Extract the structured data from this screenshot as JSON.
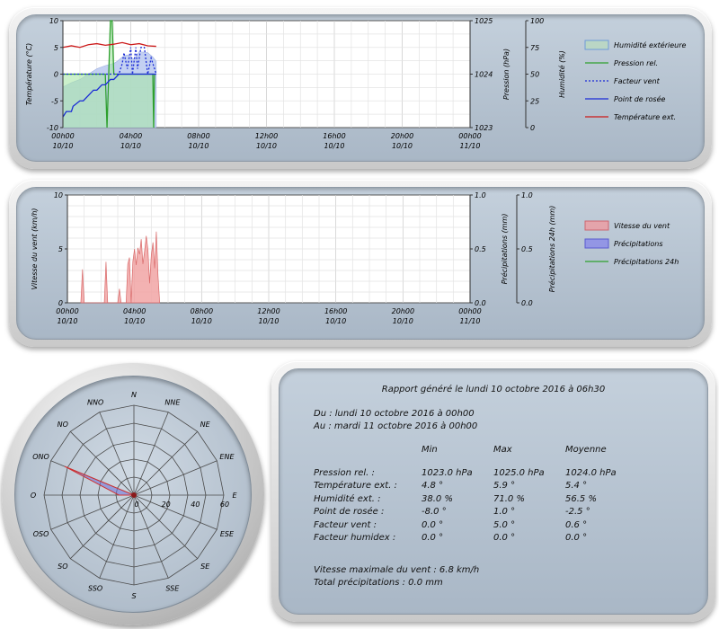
{
  "chart_data": [
    {
      "type": "line",
      "x_ticks": [
        {
          "time": "00h00",
          "date": "10/10"
        },
        {
          "time": "04h00",
          "date": "10/10"
        },
        {
          "time": "08h00",
          "date": "10/10"
        },
        {
          "time": "12h00",
          "date": "10/10"
        },
        {
          "time": "16h00",
          "date": "10/10"
        },
        {
          "time": "20h00",
          "date": "10/10"
        },
        {
          "time": "00h00",
          "date": "11/10"
        }
      ],
      "xlim_hours": [
        0,
        24
      ],
      "ylabel": "Température (°C)",
      "ylim": [
        -10,
        10
      ],
      "y_ticks": [
        "10",
        "5",
        "0",
        "-5",
        "-10"
      ],
      "y2label": "Pression (hPa)",
      "y2lim": [
        1023,
        1025
      ],
      "y2_ticks": [
        "1025",
        "1024",
        "1023"
      ],
      "y3label": "Humidité (%)",
      "y3lim": [
        0,
        100
      ],
      "y3_ticks": [
        "100",
        "75",
        "50",
        "25",
        "0"
      ],
      "grid": true,
      "legend_position": "right",
      "series": [
        {
          "name": "Humidité extérieure",
          "axis": "y3",
          "color": "#b8c8ee",
          "x": [
            0,
            0.5,
            1,
            1.5,
            2,
            2.5,
            3,
            3.2,
            3.5,
            3.8,
            4.2,
            4.5,
            5,
            5.3,
            5.5
          ],
          "values": [
            38,
            42,
            45,
            50,
            55,
            58,
            60,
            62,
            66,
            68,
            64,
            71,
            70,
            66,
            62
          ]
        },
        {
          "name": "Pression rel.",
          "axis": "y2",
          "color": "#2ea02e",
          "x": [
            0,
            0.5,
            0.8,
            2.5,
            2.6,
            2.7,
            2.8,
            2.9,
            3.0,
            3.05,
            3.1,
            3.3,
            3.4,
            5.3,
            5.35,
            5.4
          ],
          "values": [
            1024,
            1024,
            1024,
            1024,
            1023,
            1024,
            1025,
            1025,
            1024,
            1024,
            1024,
            1024,
            1024,
            1024,
            1023,
            1024
          ]
        },
        {
          "name": "Facteur vent",
          "axis": "y",
          "color": "#1a2bd6",
          "x": [
            0,
            2.5,
            3.0,
            3.3,
            3.5,
            3.6,
            3.8,
            4.0,
            4.1,
            4.3,
            4.4,
            4.6,
            4.8,
            5.0,
            5.2,
            5.5
          ],
          "values": [
            0,
            0,
            0,
            0,
            2,
            4,
            1,
            5,
            0,
            5,
            1,
            5,
            5,
            0,
            3,
            0
          ]
        },
        {
          "name": "Point de rosée",
          "axis": "y",
          "color": "#1a2bd6",
          "x": [
            0,
            0.2,
            0.5,
            0.6,
            1.0,
            1.2,
            1.5,
            1.8,
            2.0,
            2.3,
            2.5,
            2.8,
            3.0,
            3.3,
            3.5,
            4.0,
            4.5,
            5.0,
            5.5
          ],
          "values": [
            -8,
            -7,
            -7,
            -6,
            -5,
            -5,
            -4,
            -3,
            -3,
            -2,
            -2,
            -1,
            -1,
            0,
            0,
            0,
            0,
            0,
            0
          ]
        },
        {
          "name": "Température ext.",
          "axis": "y",
          "color": "#cc1a1a",
          "x": [
            0,
            0.5,
            1.0,
            1.5,
            2.0,
            2.5,
            3.0,
            3.5,
            4.0,
            4.5,
            5.0,
            5.5
          ],
          "values": [
            5.0,
            5.3,
            5.0,
            5.5,
            5.7,
            5.4,
            5.6,
            5.9,
            5.5,
            5.7,
            5.3,
            5.2
          ]
        }
      ]
    },
    {
      "type": "area",
      "x_ticks": [
        {
          "time": "00h00",
          "date": "10/10"
        },
        {
          "time": "04h00",
          "date": "10/10"
        },
        {
          "time": "08h00",
          "date": "10/10"
        },
        {
          "time": "12h00",
          "date": "10/10"
        },
        {
          "time": "16h00",
          "date": "10/10"
        },
        {
          "time": "20h00",
          "date": "10/10"
        },
        {
          "time": "00h00",
          "date": "11/10"
        }
      ],
      "xlim_hours": [
        0,
        24
      ],
      "ylabel": "Vitesse du vent (km/h)",
      "ylim": [
        0,
        10
      ],
      "y_ticks": [
        "10",
        "5",
        "0"
      ],
      "y2label": "Précipitations (mm)",
      "y2lim": [
        0,
        1
      ],
      "y2_ticks": [
        "1.0",
        "0.5",
        "0.0"
      ],
      "y3label": "Précipitations 24h (mm)",
      "y3lim": [
        0,
        1
      ],
      "y3_ticks": [
        "1.0",
        "0.5",
        "0.0"
      ],
      "grid": true,
      "legend_position": "right",
      "series": [
        {
          "name": "Vitesse du vent",
          "color": "#e88a8a",
          "x": [
            0.8,
            0.9,
            1.0,
            1.1,
            2.2,
            2.3,
            2.4,
            3.0,
            3.1,
            3.2,
            3.5,
            3.6,
            3.7,
            3.8,
            3.9,
            4.0,
            4.1,
            4.2,
            4.3,
            4.4,
            4.5,
            4.6,
            4.7,
            4.8,
            4.9,
            5.0,
            5.1,
            5.2,
            5.3,
            5.4,
            5.5
          ],
          "values": [
            0,
            3.1,
            0,
            0,
            0,
            3.8,
            0,
            0,
            1.3,
            0,
            0,
            3.6,
            4.2,
            0,
            3.8,
            5.0,
            3.5,
            5.1,
            4.5,
            5.9,
            3.6,
            4.8,
            6.2,
            4.9,
            1.8,
            4.4,
            5.6,
            3.2,
            6.6,
            2.5,
            0
          ]
        },
        {
          "name": "Précipitations",
          "color": "#7a7ae8",
          "x": [
            0,
            24
          ],
          "values": [
            0,
            0
          ]
        },
        {
          "name": "Précipitations 24h",
          "color": "#2ea02e",
          "x": [
            0,
            24
          ],
          "values": [
            0,
            0
          ]
        }
      ]
    },
    {
      "type": "radar",
      "directions": [
        "N",
        "NNE",
        "NE",
        "ENE",
        "E",
        "ESE",
        "SE",
        "SSE",
        "S",
        "SSO",
        "SO",
        "OSO",
        "O",
        "ONO",
        "NO",
        "NNO"
      ],
      "radial_ticks": [
        "0",
        "20",
        "40",
        "60"
      ],
      "rmax": 60,
      "values": [
        0,
        0,
        0,
        0,
        0,
        0,
        0,
        0,
        0,
        0,
        0,
        0,
        10,
        50,
        0,
        0
      ],
      "color": "#6a70d8"
    }
  ],
  "report": {
    "title": "Rapport généré le lundi 10 octobre 2016 à 06h30",
    "from": "Du : lundi 10 octobre 2016 à 00h00",
    "to": "Au : mardi 11 octobre 2016 à 00h00",
    "headers": [
      "",
      "Min",
      "Max",
      "Moyenne"
    ],
    "rows": [
      [
        "Pression rel. :",
        "1023.0 hPa",
        "1025.0 hPa",
        "1024.0 hPa"
      ],
      [
        "Température ext. :",
        "4.8 °",
        "5.9 °",
        "5.4 °"
      ],
      [
        "Humidité ext. :",
        "38.0 %",
        "71.0 %",
        "56.5 %"
      ],
      [
        "Point de rosée :",
        "-8.0 °",
        "1.0 °",
        "-2.5 °"
      ],
      [
        "Facteur vent :",
        "0.0 °",
        "5.0 °",
        "0.6 °"
      ],
      [
        "Facteur humidex :",
        "0.0 °",
        "0.0 °",
        "0.0 °"
      ]
    ],
    "wind_max": "Vitesse maximale du vent : 6.8 km/h",
    "rain_total": "Total précipitations : 0.0 mm"
  }
}
